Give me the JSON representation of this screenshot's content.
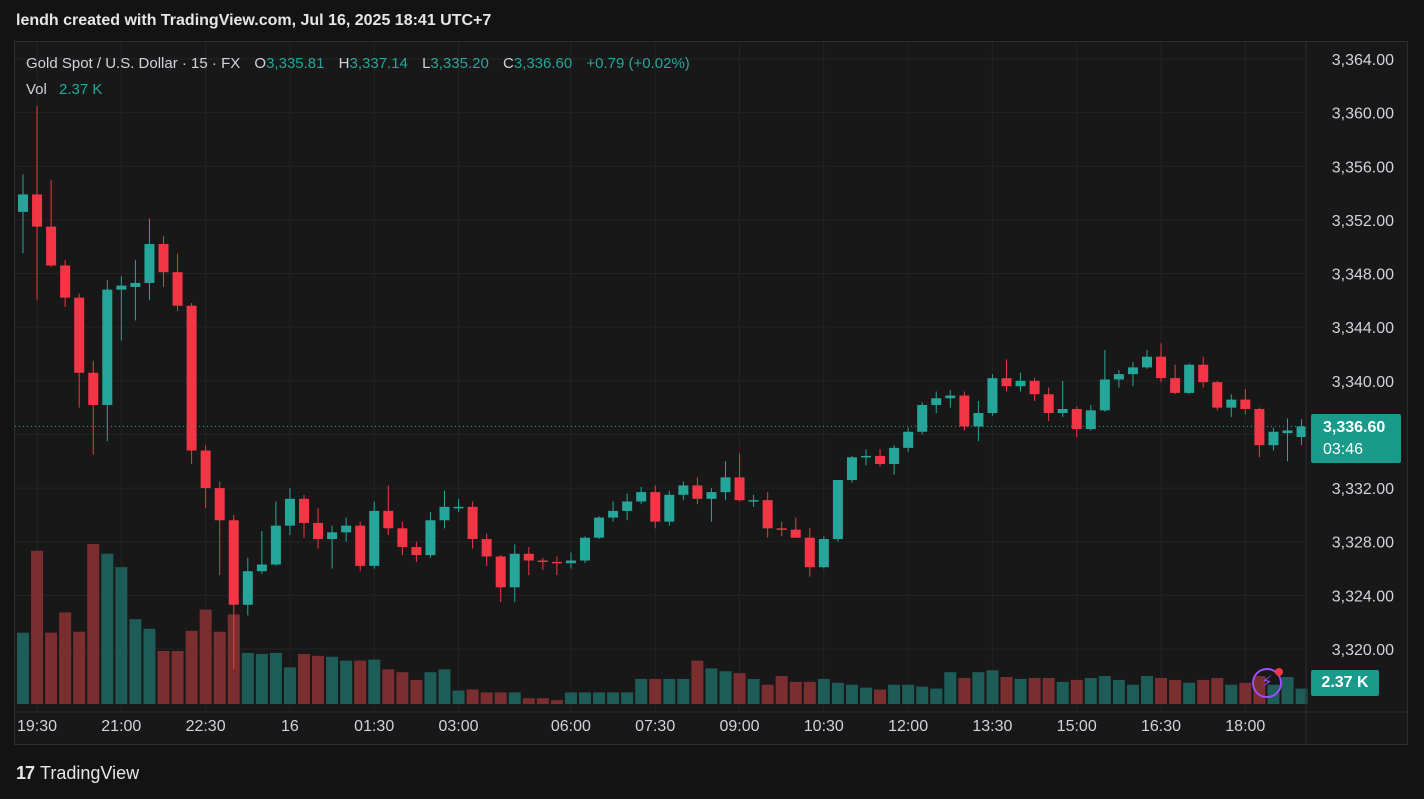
{
  "caption": "lendh created with TradingView.com, Jul 16, 2025 18:41 UTC+7",
  "brand": {
    "logo": "17",
    "name": "TradingView"
  },
  "legend": {
    "symbol": "Gold Spot / U.S. Dollar · 15 · FX",
    "o_label": "O",
    "o": "3,335.81",
    "h_label": "H",
    "h": "3,337.14",
    "l_label": "L",
    "l": "3,335.20",
    "c_label": "C",
    "c": "3,336.60",
    "change": "+0.79 (+0.02%)",
    "vol_label": "Vol",
    "vol": "2.37 K"
  },
  "badges": {
    "price": "3,336.60",
    "countdown": "03:46",
    "volume": "2.37 K",
    "flash_icon": "lightning-icon"
  },
  "colors": {
    "up": "#26a69a",
    "down": "#f23645",
    "up_vol": "#1e5c57",
    "down_vol": "#7a2e30",
    "badge": "#1a9a8a",
    "grid": "#232323"
  },
  "chart_data": {
    "type": "candlestick",
    "title": "Gold Spot / U.S. Dollar · 15 · FX",
    "ylim": [
      3316,
      3366
    ],
    "y_ticks": [
      "3,364.00",
      "3,360.00",
      "3,356.00",
      "3,352.00",
      "3,348.00",
      "3,344.00",
      "3,340.00",
      "3,336.00",
      "3,332.00",
      "3,328.00",
      "3,324.00",
      "3,320.00"
    ],
    "y_tick_values": [
      3364,
      3360,
      3356,
      3352,
      3348,
      3344,
      3340,
      3336,
      3332,
      3328,
      3324,
      3320
    ],
    "x_ticks": [
      "19:30",
      "21:00",
      "22:30",
      "16",
      "01:30",
      "03:00",
      "06:00",
      "07:30",
      "09:00",
      "10:30",
      "12:00",
      "13:30",
      "15:00",
      "16:30",
      "18:00"
    ],
    "x_tick_index": [
      0,
      6,
      12,
      18,
      24,
      30,
      38,
      44,
      50,
      56,
      62,
      68,
      74,
      80,
      86
    ],
    "last_price": 3336.6,
    "candles": [
      [
        3352.6,
        3355.4,
        3349.5,
        3353.9
      ],
      [
        3353.9,
        3360.5,
        3346.0,
        3351.5
      ],
      [
        3351.5,
        3355.0,
        3348.5,
        3348.6
      ],
      [
        3348.6,
        3349.0,
        3345.5,
        3346.2
      ],
      [
        3346.2,
        3346.5,
        3338.0,
        3340.6
      ],
      [
        3340.6,
        3341.5,
        3334.5,
        3338.2
      ],
      [
        3338.2,
        3347.5,
        3335.5,
        3346.8
      ],
      [
        3346.8,
        3347.8,
        3343.0,
        3347.1
      ],
      [
        3347.0,
        3349.0,
        3344.5,
        3347.3
      ],
      [
        3347.3,
        3352.1,
        3346.0,
        3350.2
      ],
      [
        3350.2,
        3350.8,
        3347.0,
        3348.1
      ],
      [
        3348.1,
        3349.5,
        3345.2,
        3345.6
      ],
      [
        3345.6,
        3345.8,
        3333.8,
        3334.8
      ],
      [
        3334.8,
        3335.2,
        3330.5,
        3332.0
      ],
      [
        3332.0,
        3332.5,
        3325.5,
        3329.6
      ],
      [
        3329.6,
        3330.0,
        3318.5,
        3323.3
      ],
      [
        3323.3,
        3326.8,
        3322.5,
        3325.8
      ],
      [
        3325.8,
        3328.8,
        3325.6,
        3326.3
      ],
      [
        3326.3,
        3331.0,
        3326.2,
        3329.2
      ],
      [
        3329.2,
        3332.0,
        3328.5,
        3331.2
      ],
      [
        3331.2,
        3331.5,
        3328.3,
        3329.4
      ],
      [
        3329.4,
        3330.5,
        3327.5,
        3328.2
      ],
      [
        3328.2,
        3329.2,
        3326.0,
        3328.7
      ],
      [
        3328.7,
        3329.8,
        3328.0,
        3329.2
      ],
      [
        3329.2,
        3329.5,
        3325.8,
        3326.2
      ],
      [
        3326.2,
        3331.0,
        3326.0,
        3330.3
      ],
      [
        3330.3,
        3332.2,
        3328.5,
        3329.0
      ],
      [
        3329.0,
        3329.5,
        3327.0,
        3327.6
      ],
      [
        3327.6,
        3328.0,
        3326.5,
        3327.0
      ],
      [
        3327.0,
        3330.2,
        3326.8,
        3329.6
      ],
      [
        3329.6,
        3331.8,
        3329.0,
        3330.6
      ],
      [
        3330.6,
        3331.2,
        3330.2,
        3330.6
      ],
      [
        3330.6,
        3331.0,
        3327.5,
        3328.2
      ],
      [
        3328.2,
        3328.6,
        3326.2,
        3326.9
      ],
      [
        3326.9,
        3327.0,
        3323.5,
        3324.6
      ],
      [
        3324.6,
        3327.8,
        3323.5,
        3327.1
      ],
      [
        3327.1,
        3327.6,
        3325.5,
        3326.6
      ],
      [
        3326.6,
        3326.8,
        3325.9,
        3326.5
      ],
      [
        3326.5,
        3326.9,
        3325.5,
        3326.4
      ],
      [
        3326.4,
        3327.2,
        3326.0,
        3326.6
      ],
      [
        3326.6,
        3328.4,
        3326.4,
        3328.3
      ],
      [
        3328.3,
        3329.9,
        3328.2,
        3329.8
      ],
      [
        3329.8,
        3331.0,
        3329.5,
        3330.3
      ],
      [
        3330.3,
        3331.6,
        3329.6,
        3331.0
      ],
      [
        3331.0,
        3332.1,
        3330.8,
        3331.7
      ],
      [
        3331.7,
        3332.2,
        3329.0,
        3329.5
      ],
      [
        3329.5,
        3331.8,
        3329.2,
        3331.5
      ],
      [
        3331.5,
        3332.5,
        3331.1,
        3332.2
      ],
      [
        3332.2,
        3332.8,
        3330.8,
        3331.2
      ],
      [
        3331.2,
        3332.0,
        3329.5,
        3331.7
      ],
      [
        3331.7,
        3334.0,
        3331.1,
        3332.8
      ],
      [
        3332.8,
        3334.6,
        3331.0,
        3331.1
      ],
      [
        3331.1,
        3331.5,
        3330.6,
        3331.1
      ],
      [
        3331.1,
        3331.7,
        3328.3,
        3329.0
      ],
      [
        3329.0,
        3329.5,
        3328.4,
        3328.9
      ],
      [
        3328.9,
        3329.8,
        3328.3,
        3328.3
      ],
      [
        3328.3,
        3329.0,
        3325.4,
        3326.1
      ],
      [
        3326.1,
        3328.4,
        3326.0,
        3328.2
      ],
      [
        3328.2,
        3332.6,
        3328.0,
        3332.6
      ],
      [
        3332.6,
        3334.4,
        3332.4,
        3334.3
      ],
      [
        3334.3,
        3334.9,
        3333.7,
        3334.4
      ],
      [
        3334.4,
        3334.9,
        3333.6,
        3333.8
      ],
      [
        3333.8,
        3335.2,
        3333.0,
        3335.0
      ],
      [
        3335.0,
        3336.5,
        3334.7,
        3336.2
      ],
      [
        3336.2,
        3338.4,
        3336.0,
        3338.2
      ],
      [
        3338.2,
        3339.2,
        3337.6,
        3338.7
      ],
      [
        3338.7,
        3339.3,
        3338.0,
        3338.9
      ],
      [
        3338.9,
        3339.2,
        3336.3,
        3336.6
      ],
      [
        3336.6,
        3338.5,
        3335.5,
        3337.6
      ],
      [
        3337.6,
        3340.5,
        3337.4,
        3340.2
      ],
      [
        3340.2,
        3341.6,
        3339.2,
        3339.6
      ],
      [
        3339.6,
        3340.6,
        3339.2,
        3340.0
      ],
      [
        3340.0,
        3340.2,
        3338.5,
        3339.0
      ],
      [
        3339.0,
        3339.5,
        3337.0,
        3337.6
      ],
      [
        3337.6,
        3340.0,
        3337.3,
        3337.9
      ],
      [
        3337.9,
        3338.1,
        3335.8,
        3336.4
      ],
      [
        3336.4,
        3338.2,
        3336.3,
        3337.8
      ],
      [
        3337.8,
        3342.3,
        3337.7,
        3340.1
      ],
      [
        3340.1,
        3340.8,
        3339.5,
        3340.5
      ],
      [
        3340.5,
        3341.4,
        3339.6,
        3341.0
      ],
      [
        3341.0,
        3342.3,
        3340.9,
        3341.8
      ],
      [
        3341.8,
        3342.8,
        3339.9,
        3340.2
      ],
      [
        3340.2,
        3341.2,
        3339.0,
        3339.1
      ],
      [
        3339.1,
        3341.3,
        3339.0,
        3341.2
      ],
      [
        3341.2,
        3341.8,
        3339.5,
        3339.9
      ],
      [
        3339.9,
        3340.0,
        3337.8,
        3338.0
      ],
      [
        3338.0,
        3339.0,
        3337.3,
        3338.6
      ],
      [
        3338.6,
        3339.4,
        3337.5,
        3337.9
      ],
      [
        3337.9,
        3338.0,
        3334.3,
        3335.2
      ],
      [
        3335.2,
        3336.5,
        3334.8,
        3336.2
      ],
      [
        3336.1,
        3337.2,
        3334.0,
        3336.3
      ],
      [
        3335.81,
        3337.14,
        3335.2,
        3336.6
      ]
    ],
    "volumes": [
      0.74,
      1.59,
      0.74,
      0.95,
      0.75,
      1.66,
      1.56,
      1.42,
      0.88,
      0.78,
      0.55,
      0.55,
      0.76,
      0.98,
      0.75,
      0.93,
      0.53,
      0.52,
      0.53,
      0.38,
      0.52,
      0.5,
      0.49,
      0.45,
      0.45,
      0.46,
      0.36,
      0.33,
      0.25,
      0.33,
      0.36,
      0.14,
      0.15,
      0.12,
      0.12,
      0.12,
      0.06,
      0.06,
      0.04,
      0.12,
      0.12,
      0.12,
      0.12,
      0.12,
      0.26,
      0.26,
      0.26,
      0.26,
      0.45,
      0.37,
      0.34,
      0.32,
      0.26,
      0.2,
      0.29,
      0.23,
      0.23,
      0.26,
      0.22,
      0.2,
      0.17,
      0.15,
      0.2,
      0.2,
      0.18,
      0.16,
      0.33,
      0.27,
      0.33,
      0.35,
      0.28,
      0.26,
      0.27,
      0.27,
      0.23,
      0.25,
      0.27,
      0.29,
      0.25,
      0.2,
      0.29,
      0.27,
      0.25,
      0.22,
      0.25,
      0.27,
      0.2,
      0.22,
      0.29,
      0.2,
      0.28,
      0.16
    ]
  }
}
